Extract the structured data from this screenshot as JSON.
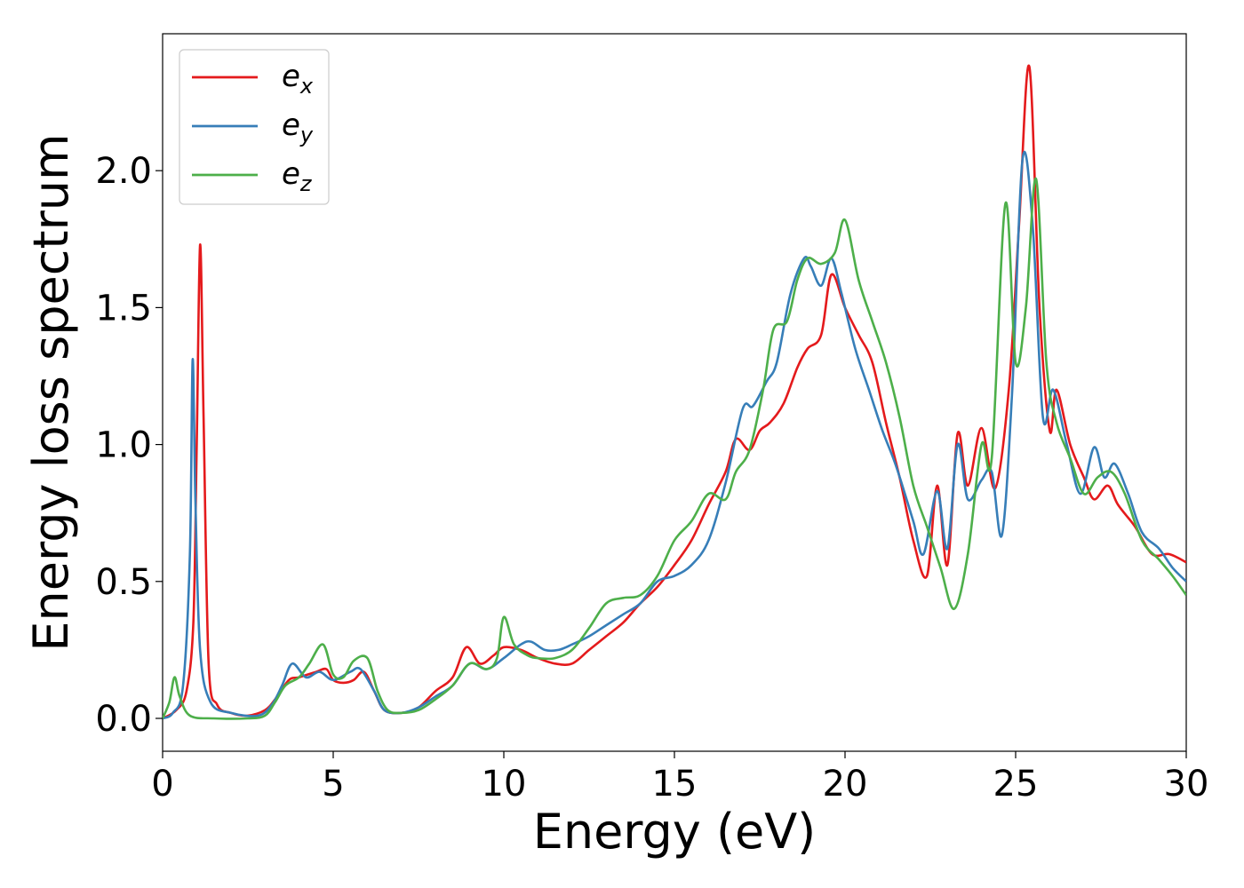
{
  "chart_data": {
    "type": "line",
    "xlabel": "Energy (eV)",
    "ylabel": "Energy loss spectrum",
    "xlim": [
      0,
      30
    ],
    "ylim": [
      -0.12,
      2.5
    ],
    "x_ticks": [
      "0",
      "5",
      "10",
      "15",
      "20",
      "25",
      "30"
    ],
    "y_ticks": [
      "0.0",
      "0.5",
      "1.0",
      "1.5",
      "2.0"
    ],
    "grid": false,
    "legend_position": "top-left",
    "series": [
      {
        "name": "e_x",
        "label_base": "e",
        "label_sub": "x",
        "color": "#e41a1c",
        "points": [
          [
            0,
            0
          ],
          [
            0.4,
            0.03
          ],
          [
            0.7,
            0.1
          ],
          [
            0.9,
            0.35
          ],
          [
            1.0,
            1.0
          ],
          [
            1.1,
            1.73
          ],
          [
            1.2,
            1.1
          ],
          [
            1.35,
            0.2
          ],
          [
            1.6,
            0.05
          ],
          [
            2.0,
            0.02
          ],
          [
            2.5,
            0.01
          ],
          [
            3.0,
            0.03
          ],
          [
            3.3,
            0.07
          ],
          [
            3.7,
            0.14
          ],
          [
            4.0,
            0.15
          ],
          [
            4.5,
            0.17
          ],
          [
            4.8,
            0.18
          ],
          [
            5.0,
            0.14
          ],
          [
            5.3,
            0.13
          ],
          [
            5.6,
            0.14
          ],
          [
            5.9,
            0.17
          ],
          [
            6.2,
            0.1
          ],
          [
            6.5,
            0.03
          ],
          [
            7.0,
            0.02
          ],
          [
            7.5,
            0.04
          ],
          [
            8.0,
            0.1
          ],
          [
            8.5,
            0.15
          ],
          [
            8.9,
            0.26
          ],
          [
            9.3,
            0.2
          ],
          [
            9.7,
            0.23
          ],
          [
            10.0,
            0.26
          ],
          [
            10.5,
            0.25
          ],
          [
            11.0,
            0.22
          ],
          [
            11.5,
            0.2
          ],
          [
            12.0,
            0.2
          ],
          [
            12.5,
            0.25
          ],
          [
            13.0,
            0.3
          ],
          [
            13.5,
            0.35
          ],
          [
            14.0,
            0.42
          ],
          [
            14.5,
            0.48
          ],
          [
            15.0,
            0.56
          ],
          [
            15.5,
            0.65
          ],
          [
            16.0,
            0.78
          ],
          [
            16.5,
            0.9
          ],
          [
            16.8,
            1.02
          ],
          [
            17.2,
            0.98
          ],
          [
            17.5,
            1.05
          ],
          [
            17.8,
            1.08
          ],
          [
            18.2,
            1.15
          ],
          [
            18.6,
            1.28
          ],
          [
            18.9,
            1.35
          ],
          [
            19.3,
            1.4
          ],
          [
            19.6,
            1.62
          ],
          [
            20.0,
            1.5
          ],
          [
            20.4,
            1.4
          ],
          [
            20.8,
            1.3
          ],
          [
            21.2,
            1.08
          ],
          [
            21.6,
            0.88
          ],
          [
            22.0,
            0.65
          ],
          [
            22.4,
            0.52
          ],
          [
            22.7,
            0.85
          ],
          [
            23.0,
            0.56
          ],
          [
            23.3,
            1.04
          ],
          [
            23.6,
            0.85
          ],
          [
            24.0,
            1.06
          ],
          [
            24.4,
            0.84
          ],
          [
            24.8,
            1.2
          ],
          [
            25.1,
            1.8
          ],
          [
            25.4,
            2.38
          ],
          [
            25.7,
            1.5
          ],
          [
            26.0,
            1.05
          ],
          [
            26.2,
            1.2
          ],
          [
            26.6,
            1.0
          ],
          [
            27.0,
            0.88
          ],
          [
            27.3,
            0.8
          ],
          [
            27.7,
            0.85
          ],
          [
            28.0,
            0.78
          ],
          [
            28.5,
            0.7
          ],
          [
            29.0,
            0.6
          ],
          [
            29.5,
            0.6
          ],
          [
            30.0,
            0.57
          ]
        ]
      },
      {
        "name": "e_y",
        "label_base": "e",
        "label_sub": "y",
        "color": "#377eb8",
        "points": [
          [
            0,
            0
          ],
          [
            0.3,
            0.02
          ],
          [
            0.6,
            0.12
          ],
          [
            0.8,
            0.6
          ],
          [
            0.88,
            1.31
          ],
          [
            0.96,
            0.8
          ],
          [
            1.1,
            0.25
          ],
          [
            1.4,
            0.06
          ],
          [
            2.0,
            0.02
          ],
          [
            2.8,
            0.01
          ],
          [
            3.2,
            0.05
          ],
          [
            3.5,
            0.12
          ],
          [
            3.8,
            0.2
          ],
          [
            4.2,
            0.15
          ],
          [
            4.6,
            0.17
          ],
          [
            5.0,
            0.14
          ],
          [
            5.5,
            0.17
          ],
          [
            5.8,
            0.18
          ],
          [
            6.2,
            0.1
          ],
          [
            6.5,
            0.03
          ],
          [
            7.0,
            0.02
          ],
          [
            7.5,
            0.04
          ],
          [
            8.0,
            0.08
          ],
          [
            8.5,
            0.12
          ],
          [
            9.0,
            0.2
          ],
          [
            9.5,
            0.18
          ],
          [
            10.0,
            0.22
          ],
          [
            10.5,
            0.27
          ],
          [
            10.8,
            0.28
          ],
          [
            11.2,
            0.25
          ],
          [
            11.6,
            0.25
          ],
          [
            12.0,
            0.27
          ],
          [
            12.5,
            0.3
          ],
          [
            13.0,
            0.34
          ],
          [
            13.5,
            0.38
          ],
          [
            14.0,
            0.42
          ],
          [
            14.5,
            0.5
          ],
          [
            15.0,
            0.52
          ],
          [
            15.5,
            0.56
          ],
          [
            16.0,
            0.65
          ],
          [
            16.5,
            0.86
          ],
          [
            17.0,
            1.13
          ],
          [
            17.3,
            1.14
          ],
          [
            17.7,
            1.23
          ],
          [
            18.0,
            1.3
          ],
          [
            18.4,
            1.55
          ],
          [
            18.8,
            1.68
          ],
          [
            19.0,
            1.65
          ],
          [
            19.3,
            1.58
          ],
          [
            19.6,
            1.68
          ],
          [
            19.9,
            1.55
          ],
          [
            20.3,
            1.35
          ],
          [
            20.7,
            1.2
          ],
          [
            21.1,
            1.05
          ],
          [
            21.5,
            0.92
          ],
          [
            22.0,
            0.72
          ],
          [
            22.3,
            0.6
          ],
          [
            22.7,
            0.83
          ],
          [
            23.0,
            0.62
          ],
          [
            23.3,
            1.0
          ],
          [
            23.6,
            0.8
          ],
          [
            24.0,
            0.87
          ],
          [
            24.3,
            0.9
          ],
          [
            24.6,
            0.67
          ],
          [
            24.9,
            1.2
          ],
          [
            25.2,
            2.04
          ],
          [
            25.5,
            1.8
          ],
          [
            25.8,
            1.1
          ],
          [
            26.1,
            1.2
          ],
          [
            26.5,
            1.0
          ],
          [
            26.9,
            0.82
          ],
          [
            27.3,
            0.99
          ],
          [
            27.6,
            0.88
          ],
          [
            27.9,
            0.93
          ],
          [
            28.3,
            0.82
          ],
          [
            28.7,
            0.68
          ],
          [
            29.2,
            0.62
          ],
          [
            29.6,
            0.55
          ],
          [
            30.0,
            0.5
          ]
        ]
      },
      {
        "name": "e_z",
        "label_base": "e",
        "label_sub": "z",
        "color": "#4daf4a",
        "points": [
          [
            0,
            0
          ],
          [
            0.2,
            0.06
          ],
          [
            0.35,
            0.15
          ],
          [
            0.5,
            0.08
          ],
          [
            0.8,
            0.01
          ],
          [
            1.5,
            0.0
          ],
          [
            2.5,
            0.0
          ],
          [
            3.0,
            0.01
          ],
          [
            3.3,
            0.06
          ],
          [
            3.6,
            0.12
          ],
          [
            4.0,
            0.15
          ],
          [
            4.3,
            0.2
          ],
          [
            4.7,
            0.27
          ],
          [
            5.0,
            0.16
          ],
          [
            5.3,
            0.15
          ],
          [
            5.6,
            0.21
          ],
          [
            6.0,
            0.22
          ],
          [
            6.3,
            0.1
          ],
          [
            6.6,
            0.03
          ],
          [
            7.0,
            0.02
          ],
          [
            7.5,
            0.03
          ],
          [
            8.0,
            0.07
          ],
          [
            8.5,
            0.12
          ],
          [
            9.0,
            0.2
          ],
          [
            9.5,
            0.18
          ],
          [
            9.8,
            0.22
          ],
          [
            10.0,
            0.37
          ],
          [
            10.3,
            0.27
          ],
          [
            10.7,
            0.23
          ],
          [
            11.0,
            0.22
          ],
          [
            11.5,
            0.22
          ],
          [
            12.0,
            0.25
          ],
          [
            12.5,
            0.33
          ],
          [
            13.0,
            0.42
          ],
          [
            13.5,
            0.44
          ],
          [
            14.0,
            0.45
          ],
          [
            14.5,
            0.52
          ],
          [
            15.0,
            0.65
          ],
          [
            15.5,
            0.72
          ],
          [
            16.0,
            0.82
          ],
          [
            16.5,
            0.8
          ],
          [
            16.8,
            0.9
          ],
          [
            17.2,
            0.98
          ],
          [
            17.6,
            1.2
          ],
          [
            17.9,
            1.42
          ],
          [
            18.3,
            1.45
          ],
          [
            18.6,
            1.6
          ],
          [
            18.9,
            1.68
          ],
          [
            19.3,
            1.66
          ],
          [
            19.7,
            1.7
          ],
          [
            20.0,
            1.82
          ],
          [
            20.4,
            1.6
          ],
          [
            20.8,
            1.45
          ],
          [
            21.2,
            1.3
          ],
          [
            21.6,
            1.1
          ],
          [
            22.0,
            0.85
          ],
          [
            22.4,
            0.7
          ],
          [
            22.8,
            0.55
          ],
          [
            23.2,
            0.4
          ],
          [
            23.6,
            0.6
          ],
          [
            24.0,
            1.0
          ],
          [
            24.3,
            0.95
          ],
          [
            24.7,
            1.88
          ],
          [
            25.0,
            1.3
          ],
          [
            25.3,
            1.5
          ],
          [
            25.6,
            1.97
          ],
          [
            25.9,
            1.3
          ],
          [
            26.2,
            1.08
          ],
          [
            26.6,
            0.95
          ],
          [
            27.0,
            0.82
          ],
          [
            27.4,
            0.88
          ],
          [
            27.8,
            0.9
          ],
          [
            28.2,
            0.82
          ],
          [
            28.7,
            0.65
          ],
          [
            29.2,
            0.58
          ],
          [
            29.6,
            0.52
          ],
          [
            30.0,
            0.45
          ]
        ]
      }
    ]
  }
}
